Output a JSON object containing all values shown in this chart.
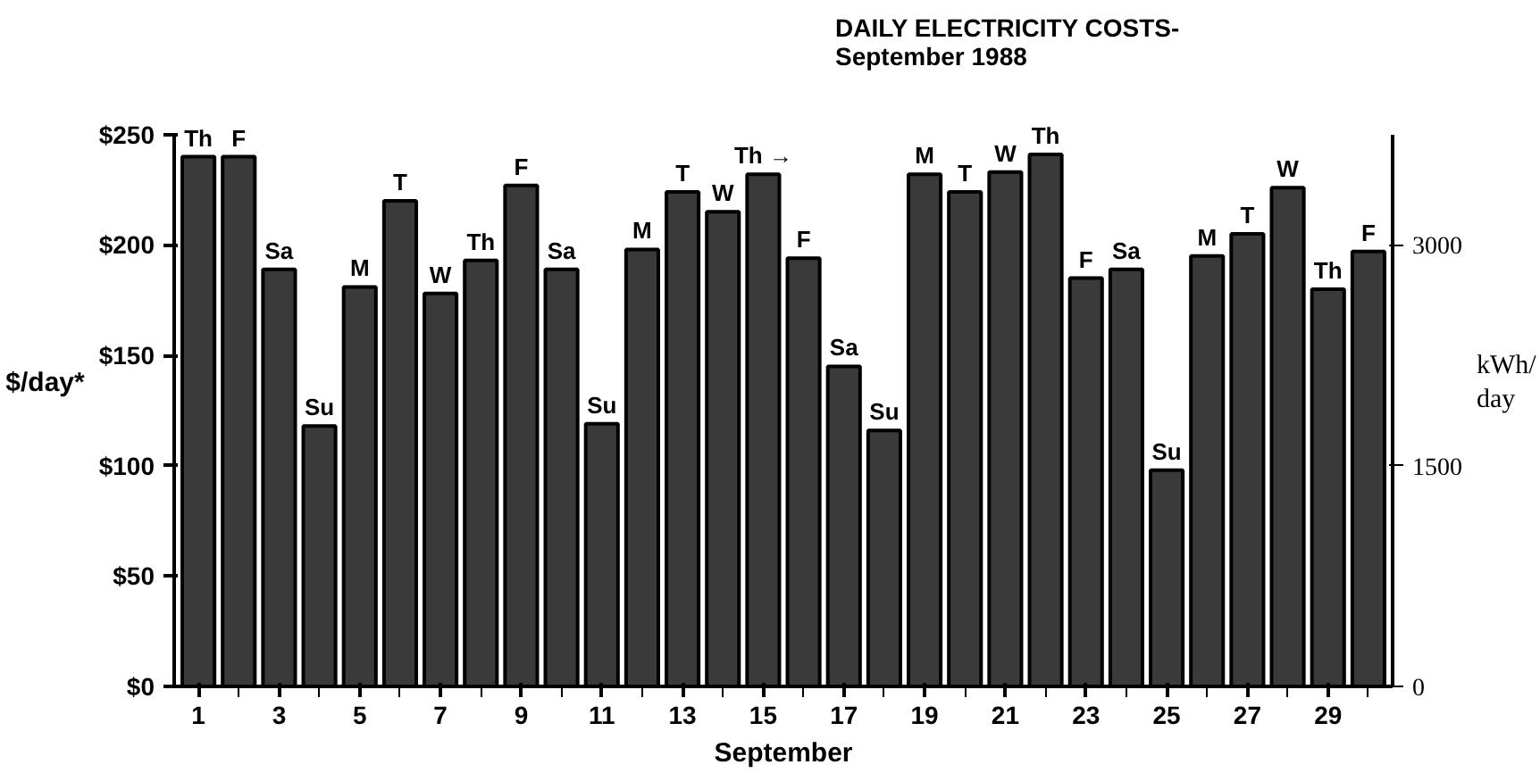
{
  "chart_data": {
    "type": "bar",
    "title": "DAILY ELECTRICITY COSTS-\nSeptember  1988",
    "xlabel": "September",
    "ylabel": "$/day*",
    "y2label": "kWh/\nday",
    "x": [
      1,
      2,
      3,
      4,
      5,
      6,
      7,
      8,
      9,
      10,
      11,
      12,
      13,
      14,
      15,
      16,
      17,
      18,
      19,
      20,
      21,
      22,
      23,
      24,
      25,
      26,
      27,
      28,
      29,
      30
    ],
    "series": [
      {
        "color": "#3a3a3a",
        "values": [
          240,
          240,
          189,
          118,
          181,
          220,
          178,
          193,
          227,
          189,
          119,
          198,
          224,
          215,
          232,
          194,
          145,
          116,
          232,
          224,
          233,
          241,
          185,
          189,
          98,
          195,
          205,
          226,
          180,
          197
        ]
      }
    ],
    "xlim": [
      0.4,
      30.6
    ],
    "xticks": [
      1,
      3,
      5,
      7,
      9,
      11,
      13,
      15,
      17,
      19,
      21,
      23,
      25,
      27,
      29
    ],
    "ylim": [
      0,
      250
    ],
    "yticks": [
      {
        "value": 0,
        "label": "$0"
      },
      {
        "value": 50,
        "label": "$50"
      },
      {
        "value": 100,
        "label": "$100"
      },
      {
        "value": 150,
        "label": "$150"
      },
      {
        "value": 200,
        "label": "$200"
      },
      {
        "value": 250,
        "label": "$250"
      }
    ],
    "y2lim": [
      0,
      3750
    ],
    "y2ticks": [
      0,
      1500,
      3000
    ],
    "grid": false,
    "annotations": [
      {
        "text": "Th",
        "x": 1,
        "y": 240
      },
      {
        "text": "F",
        "x": 2,
        "y": 240
      },
      {
        "text": "Sa",
        "x": 3,
        "y": 189
      },
      {
        "text": "Su",
        "x": 4,
        "y": 118
      },
      {
        "text": "M",
        "x": 5,
        "y": 181
      },
      {
        "text": "T",
        "x": 6,
        "y": 220
      },
      {
        "text": "W",
        "x": 7,
        "y": 178
      },
      {
        "text": "Th",
        "x": 8,
        "y": 193
      },
      {
        "text": "F",
        "x": 9,
        "y": 227
      },
      {
        "text": "Sa",
        "x": 10,
        "y": 189
      },
      {
        "text": "Su",
        "x": 11,
        "y": 119
      },
      {
        "text": "M",
        "x": 12,
        "y": 198
      },
      {
        "text": "T",
        "x": 13,
        "y": 224
      },
      {
        "text": "W",
        "x": 14,
        "y": 215
      },
      {
        "text": "Th →",
        "x": 15,
        "y": 232
      },
      {
        "text": "F",
        "x": 16,
        "y": 194
      },
      {
        "text": "Sa",
        "x": 17,
        "y": 145
      },
      {
        "text": "Su",
        "x": 18,
        "y": 116
      },
      {
        "text": "M",
        "x": 19,
        "y": 232
      },
      {
        "text": "T",
        "x": 20,
        "y": 224
      },
      {
        "text": "W",
        "x": 21,
        "y": 233
      },
      {
        "text": "Th",
        "x": 22,
        "y": 241
      },
      {
        "text": "F",
        "x": 23,
        "y": 185
      },
      {
        "text": "Sa",
        "x": 24,
        "y": 189
      },
      {
        "text": "Su",
        "x": 25,
        "y": 98
      },
      {
        "text": "M",
        "x": 26,
        "y": 195
      },
      {
        "text": "T",
        "x": 27,
        "y": 205
      },
      {
        "text": "W",
        "x": 28,
        "y": 226
      },
      {
        "text": "Th",
        "x": 29,
        "y": 180
      },
      {
        "text": "F",
        "x": 30,
        "y": 197
      }
    ]
  }
}
